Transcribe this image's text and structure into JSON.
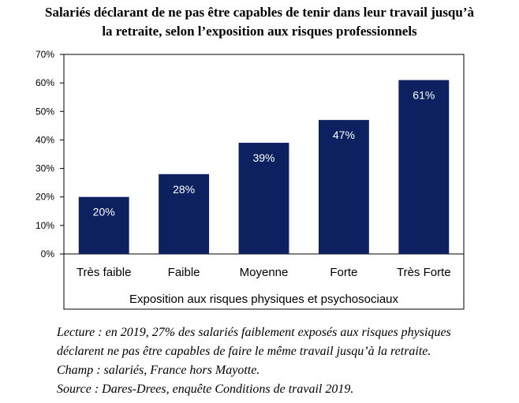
{
  "chart_data": {
    "type": "bar",
    "title": [
      "Salariés déclarant de ne pas être capables de tenir dans leur travail jusqu’à",
      "la retraite, selon l’exposition aux risques professionnels"
    ],
    "categories": [
      "Très faible",
      "Faible",
      "Moyenne",
      "Forte",
      "Très Forte"
    ],
    "values": [
      20,
      28,
      39,
      47,
      61
    ],
    "value_labels": [
      "20%",
      "28%",
      "39%",
      "47%",
      "61%"
    ],
    "ylim": [
      0,
      70
    ],
    "yticks": [
      0,
      10,
      20,
      30,
      40,
      50,
      60,
      70
    ],
    "ytick_labels": [
      "0%",
      "10%",
      "20%",
      "30%",
      "40%",
      "50%",
      "60%",
      "70%"
    ],
    "xlabel": "Exposition aux risques physiques et psychosociaux",
    "ylabel": "",
    "grid": false,
    "bar_color": "#0d2060",
    "label_color": "#ffffff"
  },
  "notes": [
    "Lecture : en 2019, 27% des salariés faiblement exposés aux risques physiques",
    "déclarent ne pas être capables de faire le même travail jusqu’à la retraite.",
    "Champ : salariés, France hors Mayotte.",
    "Source : Dares-Drees, enquête Conditions de travail 2019."
  ]
}
